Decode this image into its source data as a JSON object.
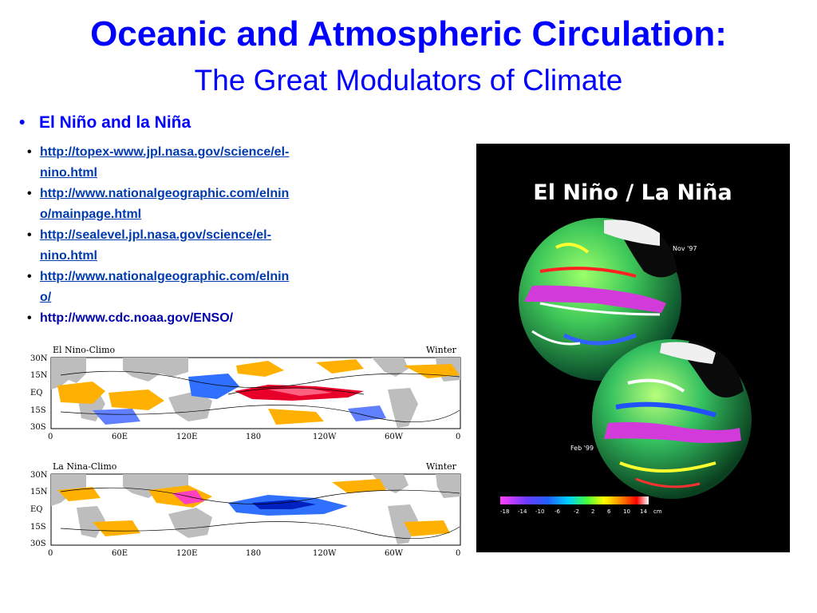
{
  "slide": {
    "title": "Oceanic and Atmospheric Circulation:",
    "subtitle": "The Great Modulators of Climate",
    "main_bullet": "El Niño and la Niña",
    "links": [
      {
        "line1": "http://topex-www.jpl.nasa.gov/science/el-",
        "line2": "nino.html"
      },
      {
        "line1": "http://www.nationalgeographic.com/elnin",
        "line2": "o/mainpage.html"
      },
      {
        "line1": "http://sealevel.jpl.nasa.gov/science/el-",
        "line2": "nino.html"
      },
      {
        "line1": "http://www.nationalgeographic.com/elnin",
        "line2": "o/"
      }
    ],
    "plain_link": "http://www.cdc.noaa.gov/ENSO/"
  },
  "maps": [
    {
      "name": "El Nino-Climo",
      "season": "Winter"
    },
    {
      "name": "La Nina-Climo",
      "season": "Winter"
    }
  ],
  "map_axes": {
    "lat": [
      "30N",
      "15N",
      "EQ",
      "15S",
      "30S"
    ],
    "lon": [
      "0",
      "60E",
      "120E",
      "180",
      "120W",
      "60W",
      "0"
    ]
  },
  "globe": {
    "title": "El Niño / La Niña",
    "date1": "Nov '97",
    "date2": "Feb '99",
    "scale": [
      "-18",
      "-14",
      "-10",
      "-6",
      "-2",
      "2",
      "6",
      "10",
      "14"
    ],
    "unit": "cm"
  }
}
